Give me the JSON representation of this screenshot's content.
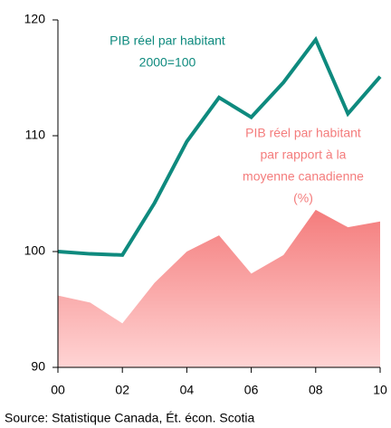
{
  "chart_data": {
    "type": "line",
    "x": [
      2000,
      2001,
      2002,
      2003,
      2004,
      2005,
      2006,
      2007,
      2008,
      2009,
      2010
    ],
    "series": [
      {
        "name": "PIB réel par habitant par rapport à la moyenne canadienne (%)",
        "kind": "area",
        "color": "#f47c7c",
        "values": [
          96.2,
          95.6,
          93.8,
          97.3,
          100.0,
          101.4,
          98.1,
          99.7,
          103.6,
          102.1,
          102.6
        ]
      },
      {
        "name": "PIB réel par habitant 2000=100",
        "kind": "line",
        "color": "#0e8a7e",
        "values": [
          100.0,
          99.8,
          99.7,
          104.2,
          109.5,
          113.3,
          111.6,
          114.6,
          118.3,
          111.9,
          115.1
        ]
      }
    ],
    "xlim": [
      2000,
      2010
    ],
    "xticks": [
      {
        "value": 2000,
        "label": "00"
      },
      {
        "value": 2002,
        "label": "02"
      },
      {
        "value": 2004,
        "label": "04"
      },
      {
        "value": 2006,
        "label": "06"
      },
      {
        "value": 2008,
        "label": "08"
      },
      {
        "value": 2010,
        "label": "10"
      }
    ],
    "ylim": [
      90,
      120
    ],
    "yticks": [
      90,
      100,
      110,
      120
    ],
    "annotations": [
      {
        "lines": [
          "PIB réel par habitant",
          "2000=100"
        ],
        "color": "#0e8a7e"
      },
      {
        "lines": [
          "PIB réel par habitant",
          "par rapport à la",
          "moyenne canadienne",
          "(%)"
        ],
        "color": "#f47c7c"
      }
    ],
    "source": "Source: Statistique Canada, Ét. écon. Scotia"
  }
}
